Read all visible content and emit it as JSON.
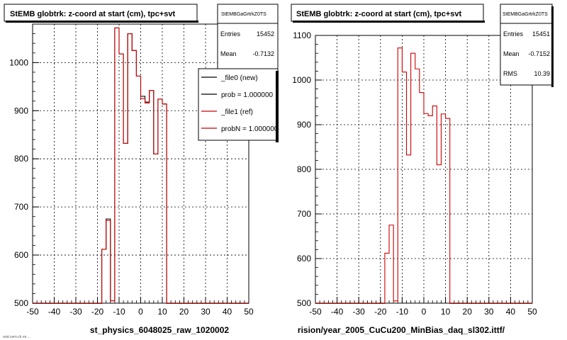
{
  "panels": [
    {
      "title": "StEMB globtrk: z-coord at start (cm), tpc+svt",
      "stats": {
        "name": "StEMBGaGrtrkZ0TS",
        "rows": [
          {
            "label": "Entries",
            "value": "15452"
          },
          {
            "label": "Mean",
            "value": "-0.7132"
          }
        ]
      },
      "legend": [
        {
          "label": "_file0 (new)",
          "color": "#000000"
        },
        {
          "label": "prob = 1.000000",
          "color": "#000000"
        },
        {
          "label": "_file1 (ref)",
          "color": "#cc0000"
        },
        {
          "label": "probN = 1.000000",
          "color": "#cc0000"
        }
      ],
      "xlabel": "st_physics_6048025_raw_1020002"
    },
    {
      "title": "StEMB globtrk: z-coord at start (cm), tpc+svt",
      "stats": {
        "name": "StEMBGaGrtrkZ0TS",
        "rows": [
          {
            "label": "Entries",
            "value": "15451"
          },
          {
            "label": "Mean",
            "value": "-0.7152"
          },
          {
            "label": "RMS",
            "value": "10.39"
          }
        ]
      },
      "legend": [],
      "xlabel": "rision/year_2005_CuCu200_MinBias_daq_sl302.ittf/"
    }
  ],
  "corner_text": "root.cern.ch on ...",
  "chart_data": [
    {
      "type": "histogram",
      "title": "StEMB globtrk: z-coord at start (cm), tpc+svt",
      "xlim": [
        -50,
        50
      ],
      "ylim": [
        500,
        1080
      ],
      "xticks": [
        -50,
        -40,
        -30,
        -20,
        -10,
        0,
        10,
        20,
        30,
        40,
        50
      ],
      "yticks": [
        600,
        700,
        800,
        900,
        1000
      ],
      "grid": true,
      "bin_edges": [
        -18,
        -16,
        -14,
        -12,
        -10,
        -8,
        -6,
        -4,
        -2,
        0,
        2,
        4,
        6,
        8,
        10,
        12
      ],
      "series": [
        {
          "name": "_file0 (new)",
          "color": "#000000",
          "values": [
            612,
            675,
            505,
            1072,
            1018,
            832,
            1060,
            1025,
            972,
            930,
            918,
            942,
            810,
            924,
            914
          ]
        },
        {
          "name": "_file1 (ref)",
          "color": "#cc0000",
          "values": [
            612,
            672,
            505,
            1072,
            1018,
            832,
            1060,
            1025,
            972,
            925,
            916,
            942,
            810,
            924,
            914
          ]
        }
      ]
    },
    {
      "type": "histogram",
      "title": "StEMB globtrk: z-coord at start (cm), tpc+svt",
      "xlim": [
        -50,
        50
      ],
      "ylim": [
        500,
        1100
      ],
      "xticks": [
        -50,
        -40,
        -30,
        -20,
        -10,
        0,
        10,
        20,
        30,
        40,
        50
      ],
      "yticks": [
        600,
        700,
        800,
        900,
        1000,
        1100
      ],
      "grid": true,
      "bin_edges": [
        -18,
        -16,
        -14,
        -12,
        -10,
        -8,
        -6,
        -4,
        -2,
        0,
        2,
        4,
        6,
        8,
        10,
        12
      ],
      "series": [
        {
          "name": "_file1 (ref)",
          "color": "#cc0000",
          "values": [
            612,
            675,
            505,
            1072,
            1018,
            832,
            1060,
            1025,
            972,
            925,
            920,
            942,
            810,
            924,
            914
          ]
        }
      ]
    }
  ]
}
